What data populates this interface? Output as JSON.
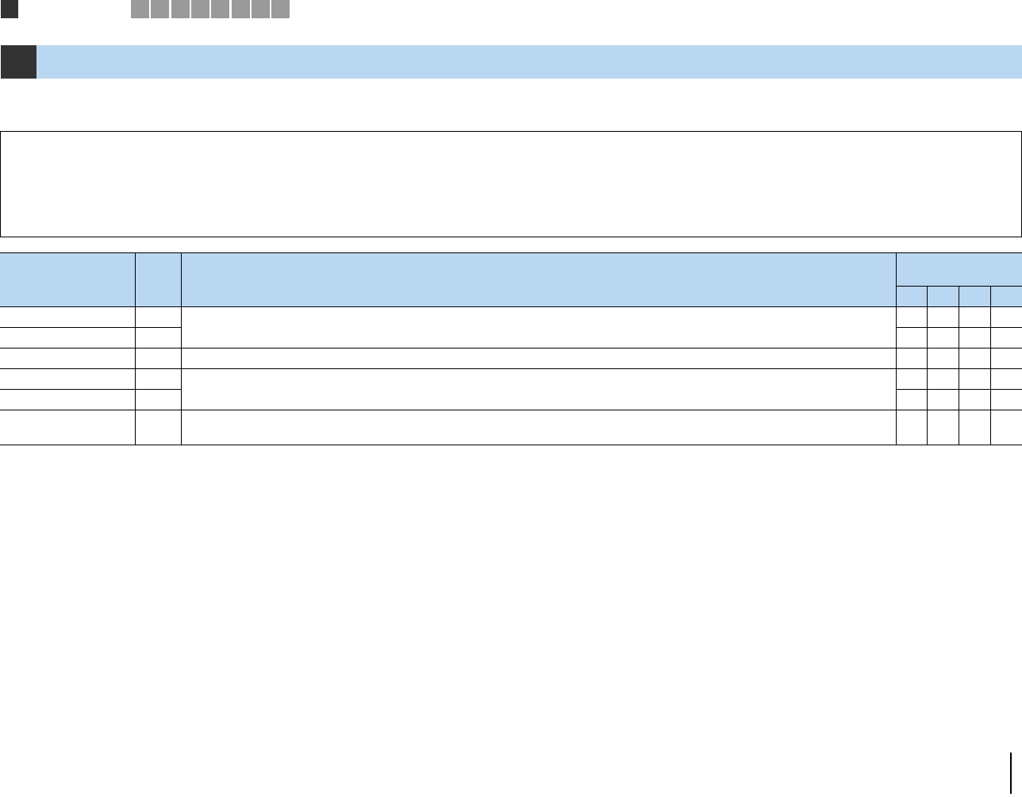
{
  "colors": {
    "accent_dark": "#333333",
    "header_blue": "#b9d7f1",
    "tab_gray": "#9a9a9a",
    "rule": "#000000"
  },
  "header_tabs": [
    "",
    "",
    "",
    "",
    "",
    "",
    "",
    ""
  ],
  "table": {
    "rows": 6,
    "sub_columns": 4
  }
}
